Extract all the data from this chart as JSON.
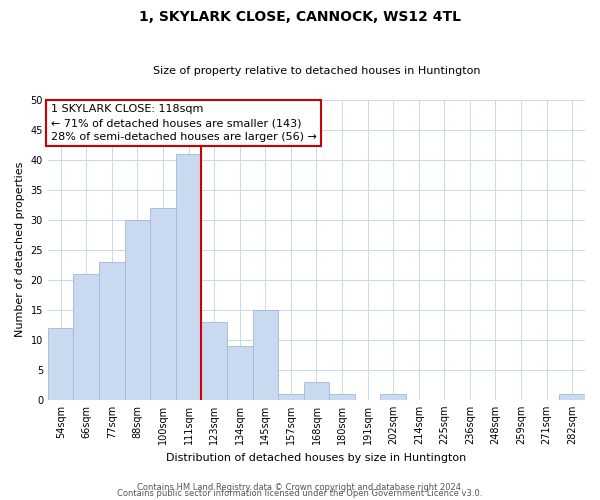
{
  "title": "1, SKYLARK CLOSE, CANNOCK, WS12 4TL",
  "subtitle": "Size of property relative to detached houses in Huntington",
  "xlabel": "Distribution of detached houses by size in Huntington",
  "ylabel": "Number of detached properties",
  "footer_line1": "Contains HM Land Registry data © Crown copyright and database right 2024.",
  "footer_line2": "Contains public sector information licensed under the Open Government Licence v3.0.",
  "bin_labels": [
    "54sqm",
    "66sqm",
    "77sqm",
    "88sqm",
    "100sqm",
    "111sqm",
    "123sqm",
    "134sqm",
    "145sqm",
    "157sqm",
    "168sqm",
    "180sqm",
    "191sqm",
    "202sqm",
    "214sqm",
    "225sqm",
    "236sqm",
    "248sqm",
    "259sqm",
    "271sqm",
    "282sqm"
  ],
  "bar_heights": [
    12,
    21,
    23,
    30,
    32,
    41,
    13,
    9,
    15,
    1,
    3,
    1,
    0,
    1,
    0,
    0,
    0,
    0,
    0,
    0,
    1
  ],
  "bar_color": "#c9d9f0",
  "bar_edge_color": "#a0b8d8",
  "marker_bin_index": 5,
  "marker_color": "#cc0000",
  "ylim": [
    0,
    50
  ],
  "yticks": [
    0,
    5,
    10,
    15,
    20,
    25,
    30,
    35,
    40,
    45,
    50
  ],
  "annotation_title": "1 SKYLARK CLOSE: 118sqm",
  "annotation_line1": "← 71% of detached houses are smaller (143)",
  "annotation_line2": "28% of semi-detached houses are larger (56) →",
  "annotation_box_color": "#ffffff",
  "annotation_box_edge": "#cc0000",
  "grid_color": "#c8d8ec",
  "title_fontsize": 10,
  "subtitle_fontsize": 8,
  "xlabel_fontsize": 8,
  "ylabel_fontsize": 8,
  "tick_fontsize": 7,
  "annot_fontsize": 8,
  "footer_fontsize": 6
}
